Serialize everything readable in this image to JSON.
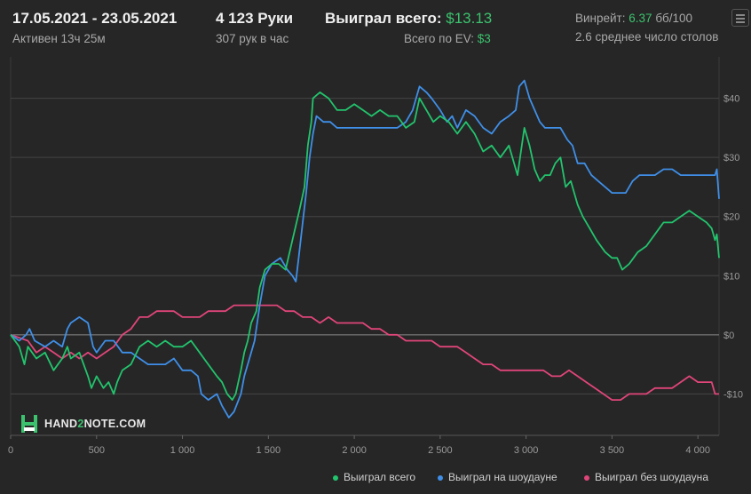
{
  "header": {
    "date_range": "17.05.2021 - 23.05.2021",
    "active_label": "Активен 13ч 25м",
    "hands": "4 123 Руки",
    "hands_per_hour": "307 рук в час",
    "won_total_label": "Выиграл всего:",
    "won_total_value": "$13.13",
    "ev_total_label": "Всего по EV:",
    "ev_total_value": "$3",
    "winrate_label": "Винрейт:",
    "winrate_value": "6.37",
    "winrate_unit": "бб/100",
    "avg_tables": "2.6 среднее число столов"
  },
  "logo": {
    "part1": "HAND",
    "part2": "2",
    "part3": "NOTE.COM"
  },
  "colors": {
    "background": "#262626",
    "won_total": "#22c46d",
    "showdown": "#3f8fe8",
    "non_showdown": "#e0457a",
    "accent_text": "#3cc26e"
  },
  "chart_data": {
    "type": "line",
    "xlabel": "",
    "ylabel": "",
    "xlim": [
      0,
      4123
    ],
    "ylim": [
      -17,
      47
    ],
    "x_ticks": [
      0,
      500,
      1000,
      1500,
      2000,
      2500,
      3000,
      3500,
      4000
    ],
    "x_tick_labels": [
      "0",
      "500",
      "1 000",
      "1 500",
      "2 000",
      "2 500",
      "3 000",
      "3 500",
      "4 000"
    ],
    "y_ticks": [
      40,
      30,
      20,
      10,
      0,
      -10
    ],
    "y_tick_labels": [
      "$40",
      "$30",
      "$20",
      "$10",
      "$0",
      "-$10"
    ],
    "grid": true,
    "legend_position": "bottom-right",
    "series": [
      {
        "name": "Выиграл всего",
        "color": "#22c46d",
        "points": [
          [
            0,
            0
          ],
          [
            50,
            -2
          ],
          [
            80,
            -5
          ],
          [
            100,
            -2
          ],
          [
            150,
            -4
          ],
          [
            200,
            -3
          ],
          [
            250,
            -6
          ],
          [
            300,
            -4
          ],
          [
            330,
            -2
          ],
          [
            350,
            -4
          ],
          [
            400,
            -3
          ],
          [
            450,
            -7
          ],
          [
            470,
            -9
          ],
          [
            500,
            -7
          ],
          [
            540,
            -9
          ],
          [
            570,
            -8
          ],
          [
            600,
            -10
          ],
          [
            620,
            -8
          ],
          [
            650,
            -6
          ],
          [
            700,
            -5
          ],
          [
            750,
            -2
          ],
          [
            800,
            -1
          ],
          [
            850,
            -2
          ],
          [
            900,
            -1
          ],
          [
            950,
            -2
          ],
          [
            1000,
            -2
          ],
          [
            1050,
            -1
          ],
          [
            1100,
            -3
          ],
          [
            1150,
            -5
          ],
          [
            1200,
            -7
          ],
          [
            1230,
            -8
          ],
          [
            1260,
            -10
          ],
          [
            1290,
            -11
          ],
          [
            1310,
            -10
          ],
          [
            1340,
            -6
          ],
          [
            1360,
            -3
          ],
          [
            1380,
            -1
          ],
          [
            1400,
            2
          ],
          [
            1430,
            4
          ],
          [
            1450,
            8
          ],
          [
            1480,
            11
          ],
          [
            1520,
            12
          ],
          [
            1560,
            12
          ],
          [
            1600,
            11
          ],
          [
            1640,
            16
          ],
          [
            1680,
            21
          ],
          [
            1710,
            25
          ],
          [
            1730,
            32
          ],
          [
            1750,
            36
          ],
          [
            1760,
            40
          ],
          [
            1800,
            41
          ],
          [
            1850,
            40
          ],
          [
            1900,
            38
          ],
          [
            1950,
            38
          ],
          [
            2000,
            39
          ],
          [
            2050,
            38
          ],
          [
            2100,
            37
          ],
          [
            2150,
            38
          ],
          [
            2200,
            37
          ],
          [
            2250,
            37
          ],
          [
            2300,
            35
          ],
          [
            2350,
            36
          ],
          [
            2380,
            40
          ],
          [
            2420,
            38
          ],
          [
            2460,
            36
          ],
          [
            2500,
            37
          ],
          [
            2550,
            36
          ],
          [
            2600,
            34
          ],
          [
            2650,
            36
          ],
          [
            2700,
            34
          ],
          [
            2750,
            31
          ],
          [
            2800,
            32
          ],
          [
            2850,
            30
          ],
          [
            2900,
            32
          ],
          [
            2950,
            27
          ],
          [
            2990,
            35
          ],
          [
            3020,
            32
          ],
          [
            3050,
            28
          ],
          [
            3080,
            26
          ],
          [
            3110,
            27
          ],
          [
            3140,
            27
          ],
          [
            3170,
            29
          ],
          [
            3200,
            30
          ],
          [
            3230,
            25
          ],
          [
            3260,
            26
          ],
          [
            3300,
            22
          ],
          [
            3330,
            20
          ],
          [
            3370,
            18
          ],
          [
            3410,
            16
          ],
          [
            3460,
            14
          ],
          [
            3500,
            13
          ],
          [
            3530,
            13
          ],
          [
            3560,
            11
          ],
          [
            3600,
            12
          ],
          [
            3650,
            14
          ],
          [
            3700,
            15
          ],
          [
            3750,
            17
          ],
          [
            3800,
            19
          ],
          [
            3850,
            19
          ],
          [
            3900,
            20
          ],
          [
            3950,
            21
          ],
          [
            4000,
            20
          ],
          [
            4050,
            19
          ],
          [
            4080,
            18
          ],
          [
            4100,
            16
          ],
          [
            4110,
            17
          ],
          [
            4123,
            13
          ]
        ]
      },
      {
        "name": "Выиграл на шоудауне",
        "color": "#3f8fe8",
        "points": [
          [
            0,
            0
          ],
          [
            50,
            -1
          ],
          [
            90,
            0
          ],
          [
            110,
            1
          ],
          [
            140,
            -1
          ],
          [
            200,
            -2
          ],
          [
            250,
            -1
          ],
          [
            300,
            -2
          ],
          [
            330,
            1
          ],
          [
            350,
            2
          ],
          [
            400,
            3
          ],
          [
            450,
            2
          ],
          [
            480,
            -2
          ],
          [
            500,
            -3
          ],
          [
            550,
            -1
          ],
          [
            600,
            -1
          ],
          [
            650,
            -3
          ],
          [
            700,
            -3
          ],
          [
            750,
            -4
          ],
          [
            800,
            -5
          ],
          [
            850,
            -5
          ],
          [
            900,
            -5
          ],
          [
            950,
            -4
          ],
          [
            1000,
            -6
          ],
          [
            1050,
            -6
          ],
          [
            1090,
            -7
          ],
          [
            1110,
            -10
          ],
          [
            1150,
            -11
          ],
          [
            1200,
            -10
          ],
          [
            1230,
            -12
          ],
          [
            1270,
            -14
          ],
          [
            1300,
            -13
          ],
          [
            1340,
            -10
          ],
          [
            1360,
            -7
          ],
          [
            1400,
            -3
          ],
          [
            1420,
            -1
          ],
          [
            1450,
            5
          ],
          [
            1480,
            10
          ],
          [
            1520,
            12
          ],
          [
            1570,
            13
          ],
          [
            1610,
            11
          ],
          [
            1640,
            10
          ],
          [
            1660,
            9
          ],
          [
            1680,
            14
          ],
          [
            1700,
            19
          ],
          [
            1720,
            24
          ],
          [
            1740,
            30
          ],
          [
            1760,
            34
          ],
          [
            1780,
            37
          ],
          [
            1820,
            36
          ],
          [
            1860,
            36
          ],
          [
            1900,
            35
          ],
          [
            1950,
            35
          ],
          [
            2000,
            35
          ],
          [
            2050,
            35
          ],
          [
            2100,
            35
          ],
          [
            2150,
            35
          ],
          [
            2200,
            35
          ],
          [
            2250,
            35
          ],
          [
            2300,
            36
          ],
          [
            2340,
            38
          ],
          [
            2380,
            42
          ],
          [
            2420,
            41
          ],
          [
            2450,
            40
          ],
          [
            2500,
            38
          ],
          [
            2540,
            36
          ],
          [
            2570,
            37
          ],
          [
            2600,
            35
          ],
          [
            2650,
            38
          ],
          [
            2700,
            37
          ],
          [
            2750,
            35
          ],
          [
            2800,
            34
          ],
          [
            2850,
            36
          ],
          [
            2900,
            37
          ],
          [
            2940,
            38
          ],
          [
            2960,
            42
          ],
          [
            2990,
            43
          ],
          [
            3020,
            40
          ],
          [
            3050,
            38
          ],
          [
            3080,
            36
          ],
          [
            3110,
            35
          ],
          [
            3150,
            35
          ],
          [
            3200,
            35
          ],
          [
            3240,
            33
          ],
          [
            3270,
            32
          ],
          [
            3300,
            29
          ],
          [
            3340,
            29
          ],
          [
            3380,
            27
          ],
          [
            3420,
            26
          ],
          [
            3460,
            25
          ],
          [
            3500,
            24
          ],
          [
            3540,
            24
          ],
          [
            3580,
            24
          ],
          [
            3620,
            26
          ],
          [
            3660,
            27
          ],
          [
            3700,
            27
          ],
          [
            3750,
            27
          ],
          [
            3800,
            28
          ],
          [
            3850,
            28
          ],
          [
            3900,
            27
          ],
          [
            3950,
            27
          ],
          [
            4000,
            27
          ],
          [
            4050,
            27
          ],
          [
            4080,
            27
          ],
          [
            4100,
            27
          ],
          [
            4110,
            28
          ],
          [
            4123,
            23
          ]
        ]
      },
      {
        "name": "Выиграл без шоудауна",
        "color": "#e0457a",
        "points": [
          [
            0,
            0
          ],
          [
            100,
            -1
          ],
          [
            150,
            -3
          ],
          [
            200,
            -2
          ],
          [
            250,
            -3
          ],
          [
            300,
            -4
          ],
          [
            350,
            -3
          ],
          [
            400,
            -4
          ],
          [
            450,
            -3
          ],
          [
            500,
            -4
          ],
          [
            550,
            -3
          ],
          [
            600,
            -2
          ],
          [
            650,
            0
          ],
          [
            700,
            1
          ],
          [
            750,
            3
          ],
          [
            800,
            3
          ],
          [
            850,
            4
          ],
          [
            900,
            4
          ],
          [
            950,
            4
          ],
          [
            1000,
            3
          ],
          [
            1050,
            3
          ],
          [
            1100,
            3
          ],
          [
            1150,
            4
          ],
          [
            1200,
            4
          ],
          [
            1250,
            4
          ],
          [
            1300,
            5
          ],
          [
            1350,
            5
          ],
          [
            1400,
            5
          ],
          [
            1450,
            5
          ],
          [
            1500,
            5
          ],
          [
            1550,
            5
          ],
          [
            1600,
            4
          ],
          [
            1650,
            4
          ],
          [
            1700,
            3
          ],
          [
            1750,
            3
          ],
          [
            1800,
            2
          ],
          [
            1850,
            3
          ],
          [
            1900,
            2
          ],
          [
            1950,
            2
          ],
          [
            2000,
            2
          ],
          [
            2050,
            2
          ],
          [
            2100,
            1
          ],
          [
            2150,
            1
          ],
          [
            2200,
            0
          ],
          [
            2250,
            0
          ],
          [
            2300,
            -1
          ],
          [
            2350,
            -1
          ],
          [
            2400,
            -1
          ],
          [
            2450,
            -1
          ],
          [
            2500,
            -2
          ],
          [
            2550,
            -2
          ],
          [
            2600,
            -2
          ],
          [
            2650,
            -3
          ],
          [
            2700,
            -4
          ],
          [
            2750,
            -5
          ],
          [
            2800,
            -5
          ],
          [
            2850,
            -6
          ],
          [
            2900,
            -6
          ],
          [
            2950,
            -6
          ],
          [
            3000,
            -6
          ],
          [
            3050,
            -6
          ],
          [
            3100,
            -6
          ],
          [
            3150,
            -7
          ],
          [
            3200,
            -7
          ],
          [
            3250,
            -6
          ],
          [
            3300,
            -7
          ],
          [
            3350,
            -8
          ],
          [
            3400,
            -9
          ],
          [
            3450,
            -10
          ],
          [
            3500,
            -11
          ],
          [
            3550,
            -11
          ],
          [
            3600,
            -10
          ],
          [
            3650,
            -10
          ],
          [
            3700,
            -10
          ],
          [
            3750,
            -9
          ],
          [
            3800,
            -9
          ],
          [
            3850,
            -9
          ],
          [
            3900,
            -8
          ],
          [
            3950,
            -7
          ],
          [
            4000,
            -8
          ],
          [
            4050,
            -8
          ],
          [
            4080,
            -8
          ],
          [
            4100,
            -10
          ],
          [
            4123,
            -10
          ]
        ]
      }
    ]
  }
}
